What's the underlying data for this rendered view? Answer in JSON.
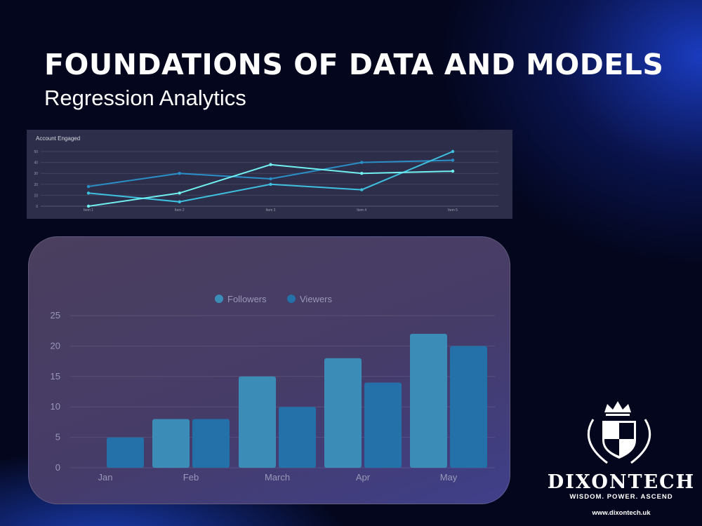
{
  "header": {
    "title": "FOUNDATIONS OF DATA AND MODELS",
    "subtitle": "Regression Analytics"
  },
  "chart_data": [
    {
      "type": "line",
      "title": "Account Engaged",
      "categories": [
        "Item 1",
        "Item 2",
        "Item 3",
        "Item 4",
        "Item 5"
      ],
      "ylim": [
        0,
        50
      ],
      "yticks": [
        0,
        10,
        20,
        30,
        40,
        50
      ],
      "grid": true,
      "series": [
        {
          "values": [
            18,
            30,
            25,
            40,
            42
          ],
          "color": "#2a8fc8"
        },
        {
          "values": [
            12,
            4,
            20,
            15,
            50
          ],
          "color": "#3ec0e0"
        },
        {
          "values": [
            0,
            12,
            38,
            30,
            32
          ],
          "color": "#70f0f0"
        }
      ]
    },
    {
      "type": "bar",
      "categories": [
        "Jan",
        "Feb",
        "March",
        "Apr",
        "May"
      ],
      "ylim": [
        0,
        25
      ],
      "yticks": [
        0,
        5,
        10,
        15,
        20,
        25
      ],
      "grid": true,
      "legend": "top",
      "series": [
        {
          "name": "Followers",
          "values": [
            0,
            8,
            15,
            18,
            22
          ],
          "color": "#3c8cb8"
        },
        {
          "name": "Viewers",
          "values": [
            5,
            8,
            10,
            14,
            20
          ],
          "color": "#2470a8"
        }
      ]
    }
  ],
  "logo": {
    "brand": "DIXONTECH",
    "tagline": "WISDOM.  POWER. ASCEND",
    "url": "www.dixontech.uk"
  }
}
